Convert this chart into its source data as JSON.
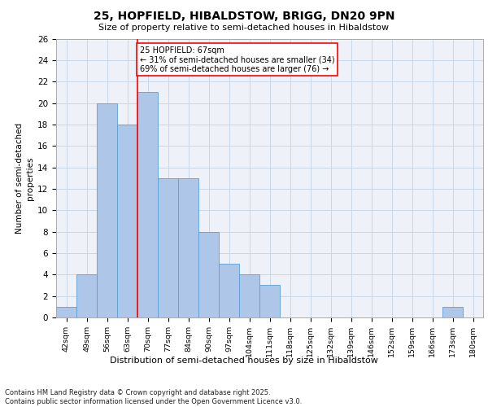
{
  "title1": "25, HOPFIELD, HIBALDSTOW, BRIGG, DN20 9PN",
  "title2": "Size of property relative to semi-detached houses in Hibaldstow",
  "xlabel": "Distribution of semi-detached houses by size in Hibaldstow",
  "ylabel": "Number of semi-detached\nproperties",
  "footer": "Contains HM Land Registry data © Crown copyright and database right 2025.\nContains public sector information licensed under the Open Government Licence v3.0.",
  "categories": [
    "42sqm",
    "49sqm",
    "56sqm",
    "63sqm",
    "70sqm",
    "77sqm",
    "84sqm",
    "90sqm",
    "97sqm",
    "104sqm",
    "111sqm",
    "118sqm",
    "125sqm",
    "132sqm",
    "139sqm",
    "146sqm",
    "152sqm",
    "159sqm",
    "166sqm",
    "173sqm",
    "180sqm"
  ],
  "values": [
    1,
    4,
    20,
    18,
    21,
    13,
    13,
    8,
    5,
    4,
    3,
    0,
    0,
    0,
    0,
    0,
    0,
    0,
    0,
    1,
    0
  ],
  "bar_color": "#aec6e8",
  "bar_edge_color": "#5a9fd4",
  "grid_color": "#c8d8e8",
  "background_color": "#eef2f8",
  "annotation_box_text": "25 HOPFIELD: 67sqm\n← 31% of semi-detached houses are smaller (34)\n69% of semi-detached houses are larger (76) →",
  "vline_x_index": 3.5,
  "ylim": [
    0,
    26
  ],
  "yticks": [
    0,
    2,
    4,
    6,
    8,
    10,
    12,
    14,
    16,
    18,
    20,
    22,
    24,
    26
  ]
}
